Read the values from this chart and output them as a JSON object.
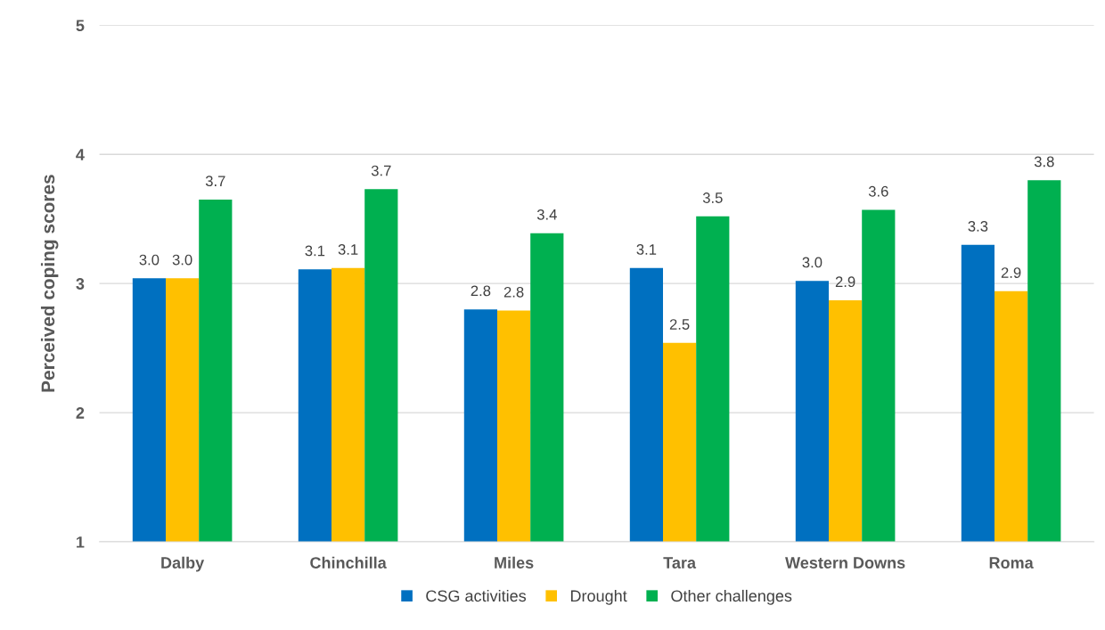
{
  "chart_data": {
    "type": "bar",
    "ylabel": "Perceived coping scores",
    "categories": [
      "Dalby",
      "Chinchilla",
      "Miles",
      "Tara",
      "Western Downs",
      "Roma"
    ],
    "series": [
      {
        "name": "CSG activities",
        "color": "#0070c0",
        "values": [
          3.04,
          3.11,
          2.8,
          3.12,
          3.02,
          3.3
        ],
        "value_labels": [
          "3.0",
          "3.1",
          "2.8",
          "3.1",
          "3.0",
          "3.3"
        ]
      },
      {
        "name": "Drought",
        "color": "#ffc000",
        "values": [
          3.04,
          3.12,
          2.79,
          2.54,
          2.87,
          2.94
        ],
        "value_labels": [
          "3.0",
          "3.1",
          "2.8",
          "2.5",
          "2.9",
          "2.9"
        ]
      },
      {
        "name": "Other challenges",
        "color": "#00b050",
        "values": [
          3.65,
          3.73,
          3.39,
          3.52,
          3.57,
          3.8
        ],
        "value_labels": [
          "3.7",
          "3.7",
          "3.4",
          "3.5",
          "3.6",
          "3.8"
        ]
      }
    ],
    "ylim": [
      1,
      5
    ],
    "yticks": [
      1,
      2,
      3,
      4,
      5
    ],
    "grid": "y",
    "legend": "bottom"
  }
}
